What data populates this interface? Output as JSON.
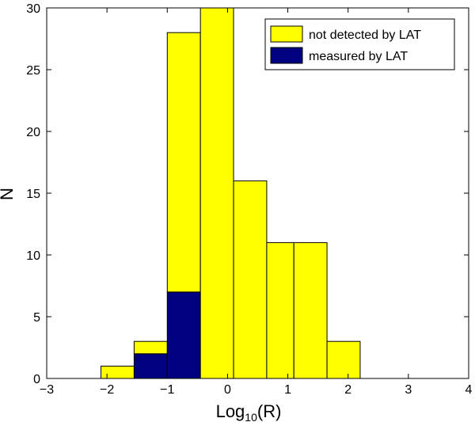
{
  "chart_data": {
    "type": "bar",
    "subtype": "stacked-histogram",
    "title": "",
    "xlabel_main": "Log",
    "xlabel_sub": "10",
    "xlabel_tail": "(R)",
    "ylabel": "N",
    "xlim": [
      -3,
      4
    ],
    "ylim": [
      0,
      30
    ],
    "xticks": [
      -3,
      -2,
      -1,
      0,
      1,
      2,
      3,
      4
    ],
    "yticks": [
      0,
      5,
      10,
      15,
      20,
      25,
      30
    ],
    "bin_edges": [
      -2.1,
      -1.55,
      -1.0,
      -0.45,
      0.1,
      0.65,
      1.1,
      1.65,
      2.2
    ],
    "series": [
      {
        "name": "measured by LAT",
        "color": "#000080",
        "values": [
          0,
          2,
          7,
          0,
          0,
          0,
          0,
          0
        ]
      },
      {
        "name": "not detected by LAT",
        "color": "#ffff00",
        "values": [
          1,
          1,
          21,
          30,
          16,
          11,
          11,
          3
        ]
      }
    ],
    "legend": {
      "position": "top-right",
      "entries": [
        "not detected by LAT",
        "measured by LAT"
      ]
    }
  }
}
